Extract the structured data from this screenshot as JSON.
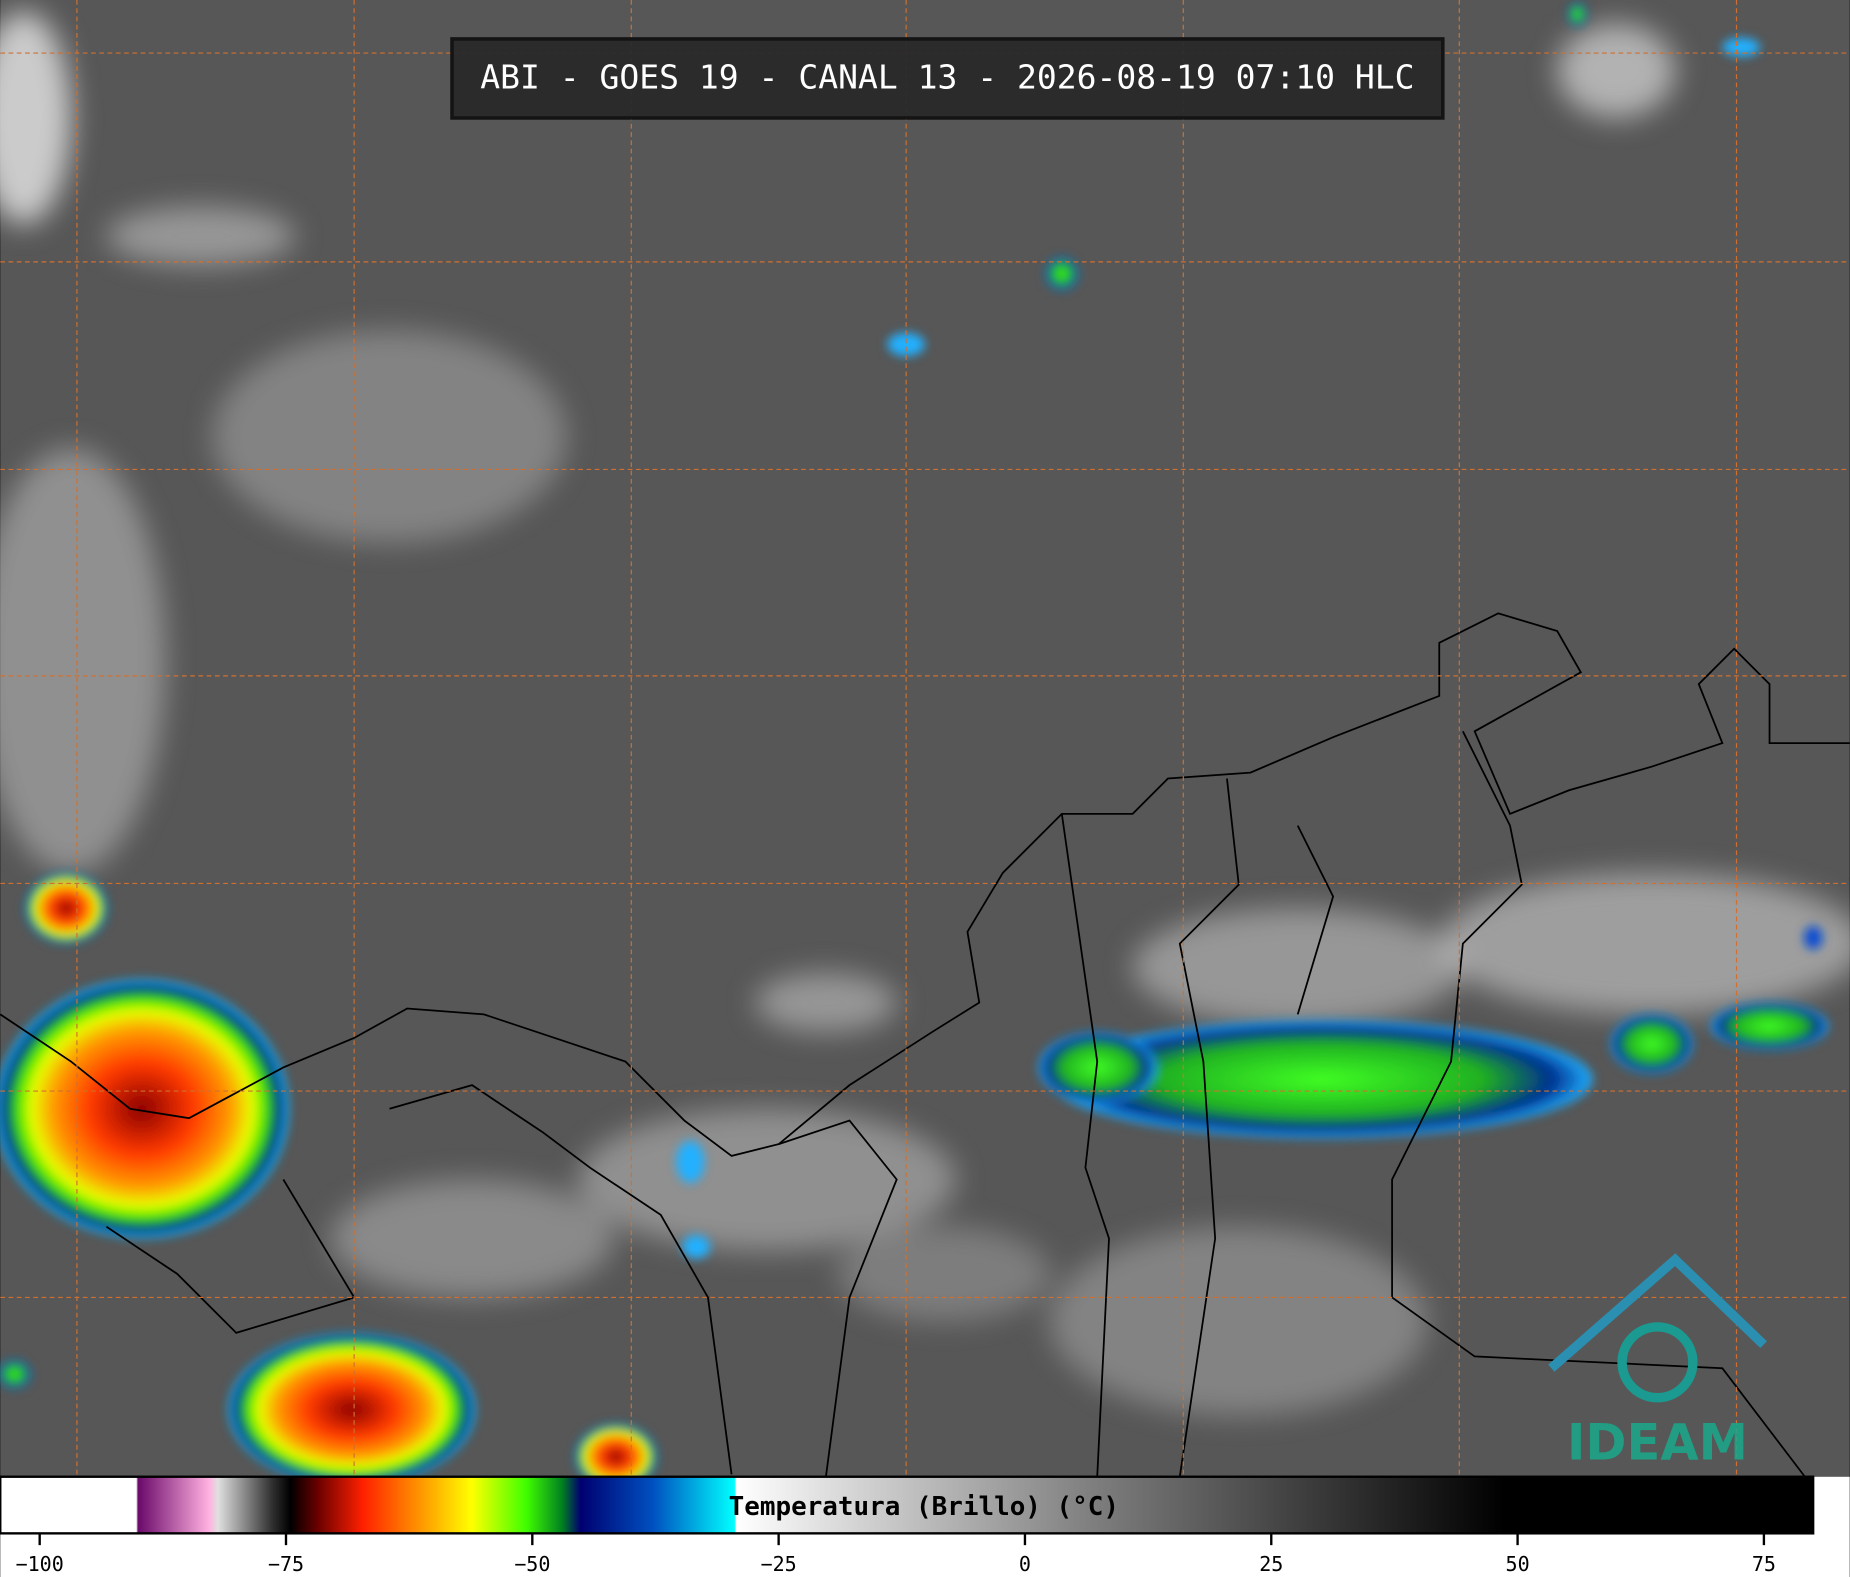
{
  "header": {
    "title": "ABI - GOES 19 - CANAL 13 - 2026-08-19 07:10 HLC"
  },
  "logo": {
    "text": "IDEAM"
  },
  "chart_data": {
    "type": "colorbar",
    "title": "Temperatura (Brillo) (°C)",
    "xlim": [
      -104,
      80
    ],
    "xticks": [
      {
        "value": -100,
        "label": "−100"
      },
      {
        "value": -75,
        "label": "−75"
      },
      {
        "value": -50,
        "label": "−50"
      },
      {
        "value": -25,
        "label": "−25"
      },
      0,
      25,
      50,
      75
    ]
  }
}
